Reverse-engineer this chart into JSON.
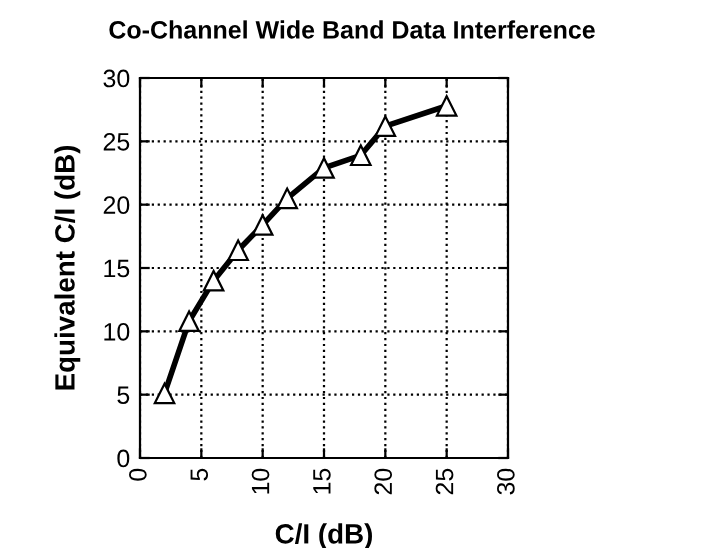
{
  "chart_data": {
    "type": "line",
    "title": "Co-Channel Wide Band Data Interference",
    "xlabel": "C/I (dB)",
    "ylabel": "Equivalent C/I (dB)",
    "x": [
      2,
      4,
      6,
      8,
      10,
      12,
      15,
      18,
      20,
      25
    ],
    "series": [
      {
        "color": "#000000",
        "values": [
          5.1,
          10.8,
          14.0,
          16.4,
          18.4,
          20.5,
          22.9,
          23.9,
          26.2,
          27.8
        ]
      }
    ],
    "xlim": [
      0,
      30
    ],
    "xticks": [
      0,
      5,
      10,
      15,
      20,
      25,
      30
    ],
    "ylim": [
      0,
      30
    ],
    "yticks": [
      0,
      5,
      10,
      15,
      20,
      25,
      30
    ],
    "grid": true,
    "marker": "triangle",
    "line_style": "solid"
  }
}
